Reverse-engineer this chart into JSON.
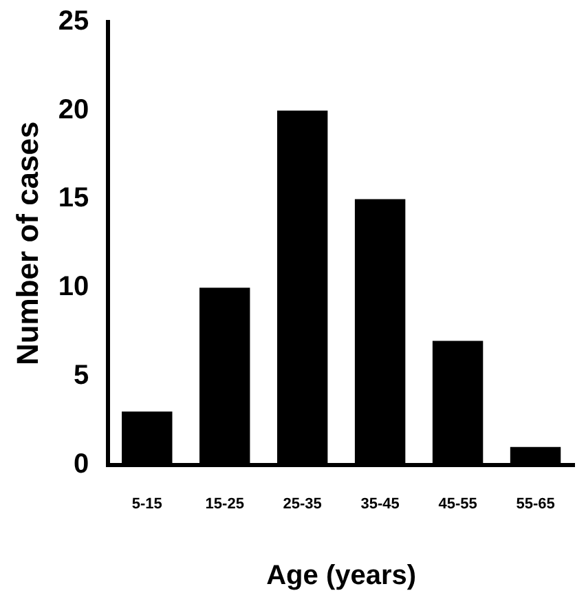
{
  "chart_data": {
    "type": "bar",
    "categories": [
      "5-15",
      "15-25",
      "25-35",
      "35-45",
      "45-55",
      "55-65"
    ],
    "values": [
      3,
      10,
      20,
      15,
      7,
      1
    ],
    "color": "#000000",
    "xlabel": "Age (years)",
    "ylabel": "Number of cases",
    "ylim": [
      0,
      25
    ],
    "yticks": [
      0,
      5,
      10,
      15,
      20,
      25
    ],
    "grid": false,
    "legend": false
  }
}
